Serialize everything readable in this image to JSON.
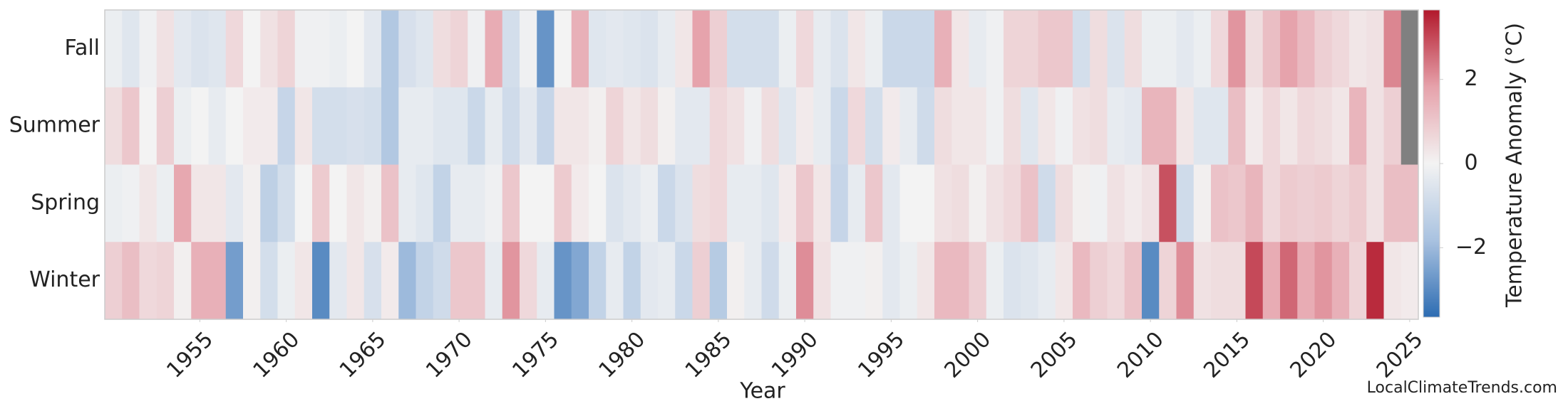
{
  "chart_data": {
    "type": "heatmap",
    "x_label": "Year",
    "colorbar_label": "Temperature Anomaly (°C)",
    "watermark": "LocalClimateTrends.com",
    "x": [
      1950,
      1951,
      1952,
      1953,
      1954,
      1955,
      1956,
      1957,
      1958,
      1959,
      1960,
      1961,
      1962,
      1963,
      1964,
      1965,
      1966,
      1967,
      1968,
      1969,
      1970,
      1971,
      1972,
      1973,
      1974,
      1975,
      1976,
      1977,
      1978,
      1979,
      1980,
      1981,
      1982,
      1983,
      1984,
      1985,
      1986,
      1987,
      1988,
      1989,
      1990,
      1991,
      1992,
      1993,
      1994,
      1995,
      1996,
      1997,
      1998,
      1999,
      2000,
      2001,
      2002,
      2003,
      2004,
      2005,
      2006,
      2007,
      2008,
      2009,
      2010,
      2011,
      2012,
      2013,
      2014,
      2015,
      2016,
      2017,
      2018,
      2019,
      2020,
      2021,
      2022,
      2023,
      2024,
      2025
    ],
    "y_categories": [
      "Fall",
      "Summer",
      "Spring",
      "Winter"
    ],
    "values": [
      [
        -0.2,
        -0.5,
        -0.1,
        0.4,
        -0.4,
        -0.6,
        -0.5,
        0.6,
        0.0,
        0.4,
        0.7,
        -0.1,
        -0.1,
        -0.2,
        0.0,
        -0.4,
        -1.6,
        -0.7,
        -0.5,
        0.5,
        0.7,
        -0.1,
        1.6,
        -0.8,
        -0.1,
        -2.8,
        0.0,
        1.5,
        -0.5,
        -0.4,
        -0.5,
        -0.6,
        -0.3,
        0.3,
        1.8,
        0.8,
        -0.8,
        -0.8,
        -0.8,
        -0.2,
        0.6,
        -0.3,
        -0.6,
        0.3,
        -0.2,
        -1.0,
        -1.0,
        -1.0,
        1.5,
        0.3,
        -0.3,
        -0.1,
        0.7,
        0.7,
        1.0,
        1.0,
        -0.8,
        0.5,
        -0.6,
        0.5,
        -0.2,
        -0.2,
        -0.4,
        -0.2,
        0.6,
        2.0,
        0.5,
        1.2,
        1.8,
        1.3,
        0.8,
        0.6,
        0.3,
        0.4,
        2.2,
        null
      ],
      [
        0.5,
        1.0,
        0.0,
        0.8,
        -0.2,
        0.0,
        -0.3,
        0.0,
        0.2,
        0.2,
        -1.1,
        0.3,
        -0.8,
        -0.8,
        -0.7,
        -0.8,
        -1.6,
        -0.3,
        -0.3,
        -0.5,
        -0.5,
        -1.0,
        -0.3,
        -0.9,
        -0.4,
        -1.1,
        0.3,
        0.3,
        0.1,
        0.7,
        0.3,
        0.5,
        0.1,
        -0.4,
        -0.4,
        0.6,
        0.4,
        -0.1,
        0.5,
        -0.5,
        0.2,
        -0.3,
        -1.0,
        0.6,
        -0.8,
        0.2,
        -0.3,
        -0.9,
        0.5,
        0.3,
        0.3,
        -0.1,
        0.5,
        -0.5,
        0.3,
        -0.1,
        0.4,
        0.5,
        -0.3,
        -0.4,
        1.4,
        1.4,
        0.3,
        -0.5,
        -0.5,
        1.2,
        0.2,
        0.6,
        0.3,
        0.6,
        0.5,
        0.3,
        1.4,
        0.4,
        0.8,
        null
      ],
      [
        -0.2,
        -0.1,
        0.3,
        -0.2,
        1.7,
        0.3,
        0.3,
        -0.4,
        0.1,
        -1.3,
        -0.8,
        0.0,
        0.9,
        0.0,
        0.3,
        0.1,
        1.1,
        -0.3,
        -0.5,
        -1.2,
        -0.3,
        -0.3,
        -0.1,
        1.0,
        0.0,
        0.0,
        0.9,
        0.2,
        0.0,
        -0.6,
        -0.4,
        -0.2,
        -1.0,
        -0.6,
        0.5,
        0.6,
        -0.3,
        -0.3,
        -0.5,
        0.2,
        1.0,
        0.3,
        -1.1,
        -0.3,
        1.0,
        -0.4,
        0.0,
        0.0,
        0.4,
        0.5,
        0.1,
        0.4,
        0.6,
        1.1,
        -0.9,
        0.5,
        0.1,
        -0.1,
        0.4,
        0.2,
        0.4,
        2.9,
        -0.9,
        0.1,
        1.1,
        1.0,
        1.4,
        0.6,
        0.9,
        0.8,
        0.9,
        0.7,
        0.9,
        0.4,
        1.2,
        1.2
      ],
      [
        0.8,
        1.2,
        0.6,
        0.7,
        0.1,
        1.5,
        1.5,
        -2.6,
        0.1,
        -0.8,
        -0.2,
        0.3,
        -3.0,
        -0.4,
        0.3,
        -0.7,
        0.2,
        -2.0,
        -1.2,
        -0.9,
        1.0,
        1.0,
        -0.3,
        2.0,
        0.6,
        -0.3,
        -2.8,
        -2.4,
        -1.2,
        -0.3,
        -1.2,
        -0.4,
        -0.3,
        -1.0,
        0.8,
        -1.5,
        0.1,
        -0.3,
        -0.9,
        -0.2,
        2.1,
        0.4,
        -0.1,
        -0.1,
        0.1,
        -0.4,
        -0.2,
        0.3,
        1.3,
        1.3,
        0.8,
        -0.2,
        -0.6,
        -0.5,
        -0.3,
        0.3,
        1.3,
        0.8,
        0.6,
        1.1,
        -3.0,
        0.7,
        2.1,
        0.4,
        0.5,
        0.5,
        3.0,
        1.6,
        2.6,
        1.6,
        2.0,
        1.5,
        0.7,
        3.4,
        0.3,
        0.2
      ]
    ],
    "xlim": [
      1949.5,
      2025.5
    ],
    "xticks": [
      1955,
      1960,
      1965,
      1970,
      1975,
      1980,
      1985,
      1990,
      1995,
      2000,
      2005,
      2010,
      2015,
      2020,
      2025
    ],
    "clim": [
      -3.65,
      3.65
    ],
    "cticks": [
      {
        "value": -2,
        "label": "−2"
      },
      0,
      2
    ],
    "colormap": [
      "#2d6cb2",
      "#a9c2e0",
      "#f3f3f3",
      "#e6a2ab",
      "#b2182b"
    ],
    "missing_color": "#808080"
  }
}
